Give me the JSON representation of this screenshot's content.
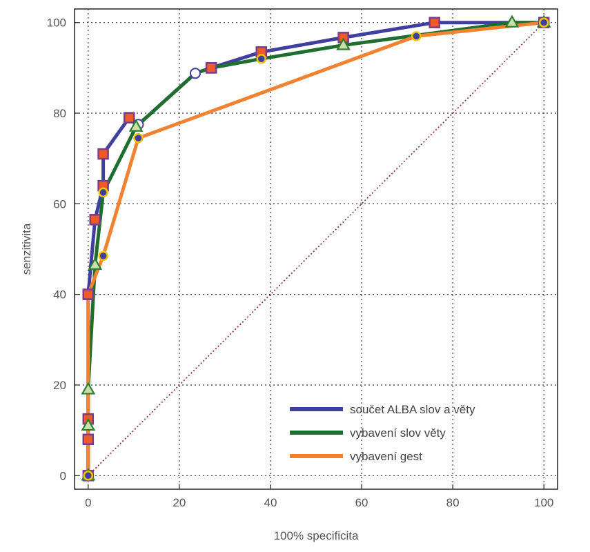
{
  "chart_data": {
    "type": "line",
    "title": "",
    "xlabel": "100% specificita",
    "ylabel": "senzitivita",
    "xlim": [
      -3,
      103
    ],
    "ylim": [
      -3,
      103
    ],
    "xticks": [
      "0",
      "20",
      "40",
      "60",
      "80",
      "100"
    ],
    "yticks": [
      "0",
      "20",
      "40",
      "60",
      "80",
      "100"
    ],
    "grid": true,
    "legend_position": "bottom-right",
    "reference_line": {
      "x": [
        0,
        100
      ],
      "y": [
        0,
        100
      ],
      "color": "#8b3a3a",
      "style": "dotted"
    },
    "series": [
      {
        "name": "součet ALBA slov a věty",
        "color": "#3f3fa0",
        "x": [
          0,
          0,
          0,
          0,
          0,
          1.5,
          3.3,
          3.3,
          9,
          11,
          23.5,
          27,
          38,
          56,
          76,
          100
        ],
        "y": [
          0,
          8,
          12.5,
          40,
          40,
          56.5,
          64,
          71,
          79,
          77.5,
          88.8,
          90,
          93.5,
          96.7,
          100,
          100
        ],
        "markers": [
          "square",
          "square",
          "square",
          "square",
          "square",
          "square",
          "square",
          "square",
          "square",
          "circle-open",
          "circle-open",
          "square",
          "square",
          "square",
          "square",
          "square"
        ]
      },
      {
        "name": "vybavení slov věty",
        "color": "#1f6e2f",
        "x": [
          0,
          0,
          0,
          1.5,
          3.3,
          10.5,
          23.5,
          27,
          38,
          56,
          93,
          100
        ],
        "y": [
          0,
          11,
          19,
          46.5,
          62.5,
          77,
          88.8,
          90,
          92,
          95,
          100,
          100
        ],
        "markers": [
          "triangle",
          "triangle",
          "triangle",
          "triangle",
          "circle",
          "triangle",
          "circle-open",
          "square",
          "circle",
          "triangle",
          "triangle",
          "triangle"
        ]
      },
      {
        "name": "vybavení gest",
        "color": "#f08232",
        "x": [
          0,
          0,
          3.3,
          11,
          72,
          100
        ],
        "y": [
          0,
          40,
          48.5,
          74.5,
          97,
          100
        ],
        "markers": [
          "circle",
          "square",
          "circle",
          "circle",
          "circle",
          "circle"
        ]
      }
    ]
  }
}
